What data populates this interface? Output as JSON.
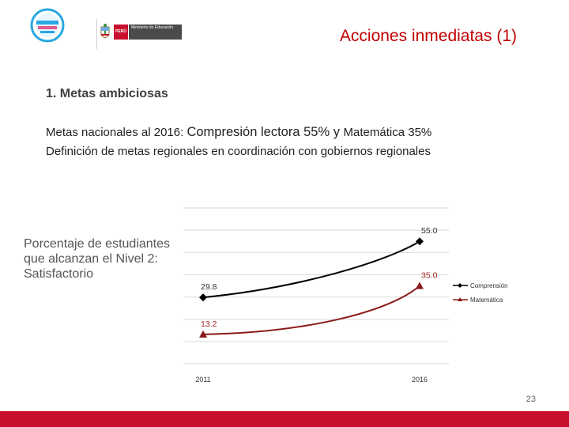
{
  "header": {
    "logo_small_text": "Ministerio de Educación",
    "peru_label": "PERÚ",
    "ministry_label": "Ministerio de Educación",
    "slide_title": "Acciones inmediatas (1)"
  },
  "content": {
    "section_title": "1. Metas ambiciosas",
    "line1_prefix": "Metas nacionales al 2016: ",
    "line1_mid": "Compresión lectora 55% y ",
    "line1_suffix": "Matemática 35%",
    "line2": "Definición de metas regionales en coordinación con gobiernos regionales",
    "chart_caption": "Porcentaje de estudiantes que alcanzan el Nivel 2: Satisfactorio"
  },
  "chart_data": {
    "type": "line",
    "title": "",
    "xlabel": "",
    "ylabel": "",
    "categories": [
      "2011",
      "2016"
    ],
    "ylim": [
      0,
      70
    ],
    "grid": true,
    "legend": "right",
    "series": [
      {
        "name": "Comprensión",
        "values": [
          29.8,
          55.0
        ],
        "color": "#000000",
        "marker": "diamond",
        "label_color": "#333333"
      },
      {
        "name": "Matemática",
        "values": [
          13.2,
          35.0
        ],
        "color": "#8b1a1a",
        "marker": "triangle",
        "label_color": "#a0251f"
      }
    ]
  },
  "footer": {
    "page_number": "23",
    "bar_color": "#c8102e"
  }
}
